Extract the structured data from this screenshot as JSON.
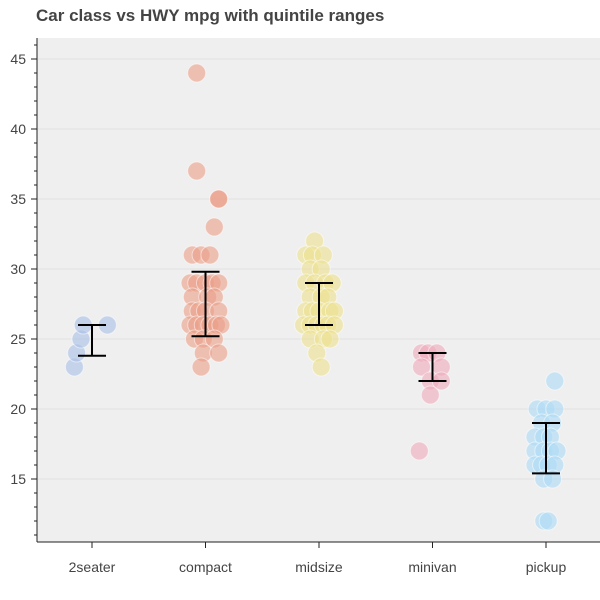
{
  "chart_data": {
    "type": "scatter",
    "title": "Car class vs HWY mpg with quintile ranges",
    "xlabel": "",
    "ylabel": "",
    "categories": [
      "2seater",
      "compact",
      "midsize",
      "minivan",
      "pickup"
    ],
    "ylim": [
      10.5,
      46.5
    ],
    "yticks": [
      15,
      20,
      25,
      30,
      35,
      40,
      45
    ],
    "colors": [
      "#a9bfe6",
      "#eb9f87",
      "#ede18d",
      "#eeaabb",
      "#abdaf5"
    ],
    "grid": true,
    "legend": "none",
    "series": [
      {
        "name": "2seater",
        "points": [
          [
            -0.4,
            23
          ],
          [
            -0.35,
            24
          ],
          [
            -0.25,
            25
          ],
          [
            -0.2,
            26
          ],
          [
            0.35,
            26
          ]
        ]
      },
      {
        "name": "compact",
        "points": [
          [
            -0.2,
            44
          ],
          [
            -0.2,
            37
          ],
          [
            0.3,
            35
          ],
          [
            0.3,
            35
          ],
          [
            0.2,
            33
          ],
          [
            -0.3,
            31
          ],
          [
            -0.1,
            31
          ],
          [
            0.1,
            31
          ],
          [
            -0.35,
            29
          ],
          [
            -0.2,
            29
          ],
          [
            0.0,
            29
          ],
          [
            0.15,
            29
          ],
          [
            0.3,
            29
          ],
          [
            -0.3,
            28
          ],
          [
            0.05,
            28
          ],
          [
            0.2,
            28
          ],
          [
            -0.3,
            27
          ],
          [
            -0.15,
            27
          ],
          [
            0.0,
            27
          ],
          [
            0.3,
            27
          ],
          [
            -0.35,
            26
          ],
          [
            -0.2,
            26
          ],
          [
            -0.05,
            26
          ],
          [
            0.1,
            26
          ],
          [
            0.25,
            26
          ],
          [
            0.35,
            26
          ],
          [
            -0.25,
            25
          ],
          [
            -0.05,
            25
          ],
          [
            0.2,
            25
          ],
          [
            -0.05,
            24
          ],
          [
            0.3,
            24
          ],
          [
            -0.1,
            23
          ]
        ]
      },
      {
        "name": "midsize",
        "points": [
          [
            -0.1,
            32
          ],
          [
            -0.3,
            31
          ],
          [
            -0.15,
            31
          ],
          [
            0.1,
            31
          ],
          [
            -0.2,
            30
          ],
          [
            0.05,
            30
          ],
          [
            -0.3,
            29
          ],
          [
            -0.1,
            29
          ],
          [
            0.15,
            29
          ],
          [
            0.3,
            29
          ],
          [
            -0.2,
            28
          ],
          [
            0.05,
            28
          ],
          [
            0.2,
            28
          ],
          [
            -0.3,
            27
          ],
          [
            -0.15,
            27
          ],
          [
            0.0,
            27
          ],
          [
            0.25,
            27
          ],
          [
            0.35,
            27
          ],
          [
            -0.35,
            26
          ],
          [
            -0.2,
            26
          ],
          [
            -0.05,
            26
          ],
          [
            0.1,
            26
          ],
          [
            0.2,
            26
          ],
          [
            0.35,
            26
          ],
          [
            -0.2,
            25
          ],
          [
            0.1,
            25
          ],
          [
            0.25,
            25
          ],
          [
            -0.05,
            24
          ],
          [
            0.05,
            23
          ]
        ]
      },
      {
        "name": "minivan",
        "points": [
          [
            -0.25,
            24
          ],
          [
            -0.1,
            24
          ],
          [
            0.1,
            24
          ],
          [
            -0.25,
            23
          ],
          [
            0.2,
            23
          ],
          [
            -0.05,
            22
          ],
          [
            0.2,
            22
          ],
          [
            -0.05,
            21
          ],
          [
            -0.3,
            17
          ]
        ]
      },
      {
        "name": "pickup",
        "points": [
          [
            0.2,
            22
          ],
          [
            -0.2,
            20
          ],
          [
            0.0,
            20
          ],
          [
            0.2,
            20
          ],
          [
            -0.1,
            19
          ],
          [
            0.15,
            19
          ],
          [
            -0.25,
            18
          ],
          [
            -0.05,
            18
          ],
          [
            0.1,
            18
          ],
          [
            -0.25,
            17
          ],
          [
            -0.05,
            17
          ],
          [
            0.1,
            17
          ],
          [
            0.25,
            17
          ],
          [
            -0.25,
            16
          ],
          [
            -0.1,
            16
          ],
          [
            0.05,
            16
          ],
          [
            0.2,
            16
          ],
          [
            -0.05,
            15
          ],
          [
            0.15,
            15
          ],
          [
            -0.05,
            12
          ],
          [
            0.05,
            12
          ]
        ]
      }
    ],
    "ranges": [
      {
        "category": "2seater",
        "low": 23.8,
        "high": 26
      },
      {
        "category": "compact",
        "low": 25.2,
        "high": 29.8
      },
      {
        "category": "midsize",
        "low": 26,
        "high": 29
      },
      {
        "category": "minivan",
        "low": 22,
        "high": 24
      },
      {
        "category": "pickup",
        "low": 15.4,
        "high": 19
      }
    ]
  }
}
